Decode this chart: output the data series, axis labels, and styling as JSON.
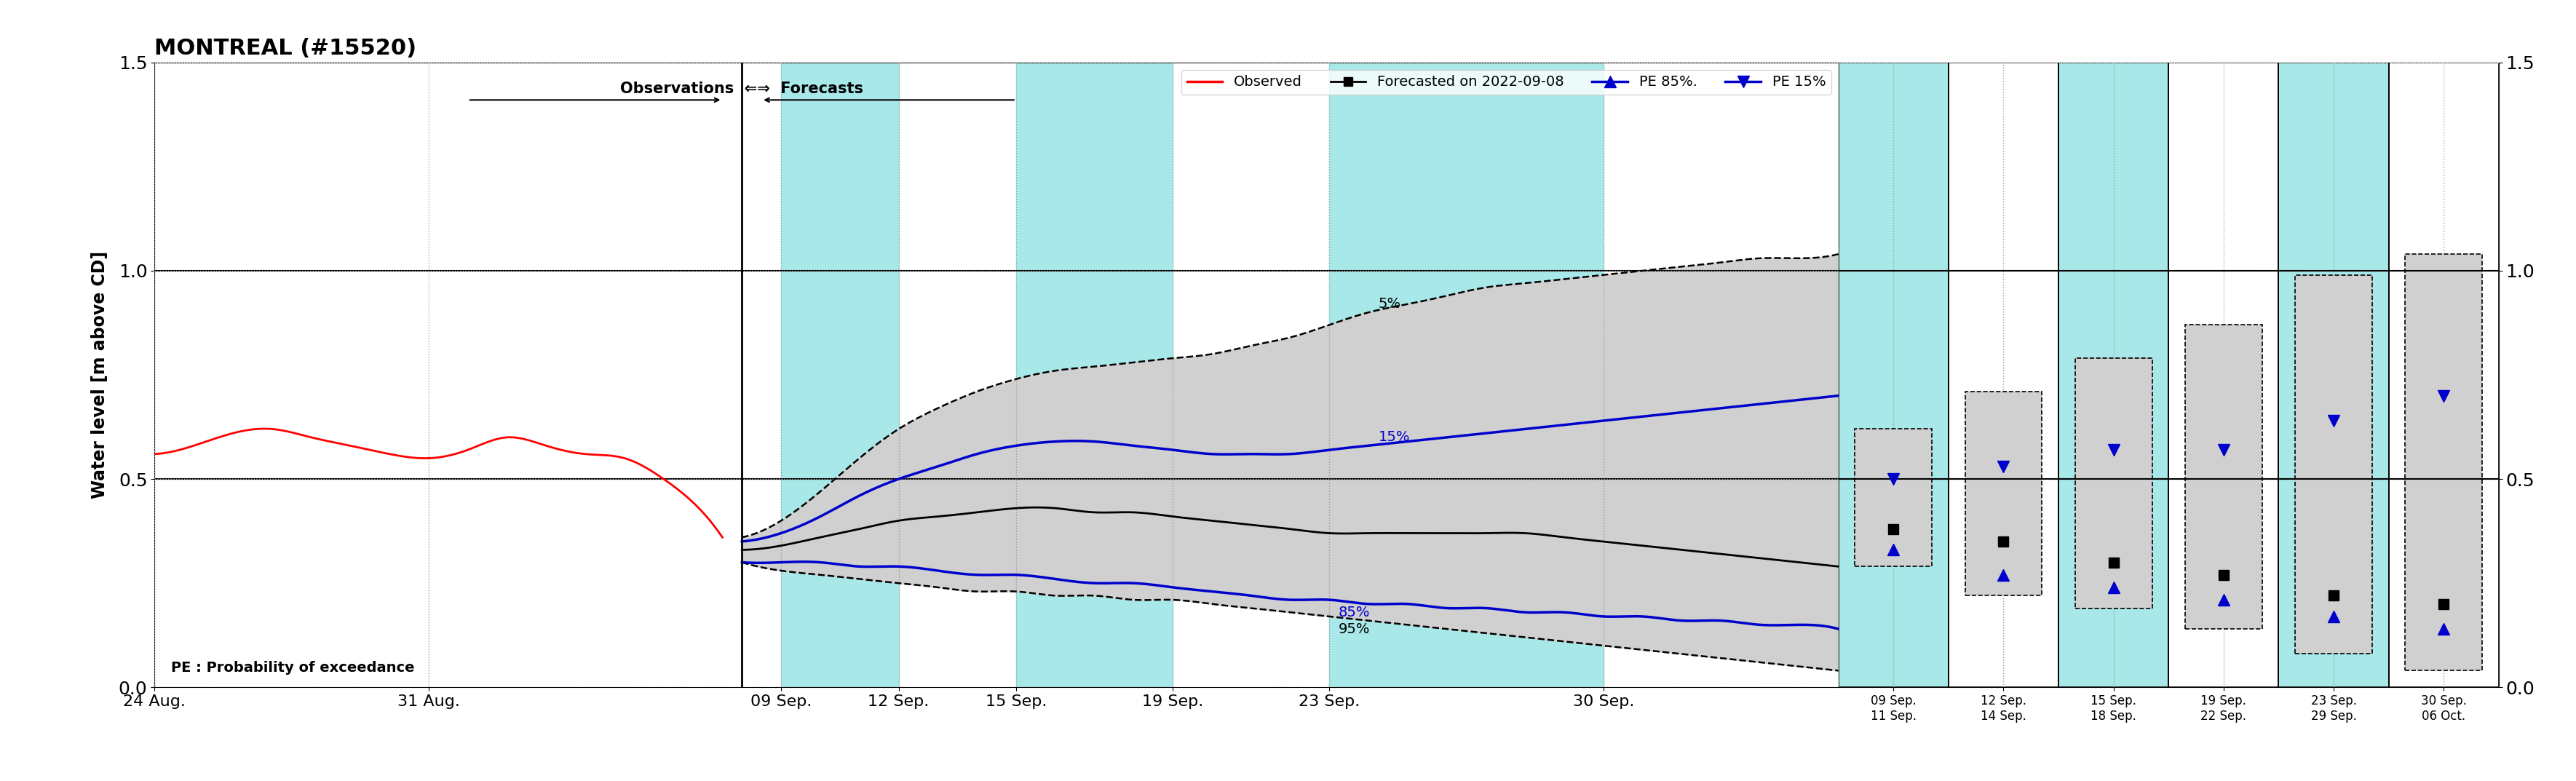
{
  "title": "MONTREAL (#15520)",
  "ylabel": "Water level [m above CD]",
  "ylim": [
    0.0,
    1.5
  ],
  "yticks": [
    0.0,
    0.5,
    1.0,
    1.5
  ],
  "cyan_color": "#a8e8e8",
  "grid_color": "#999999",
  "obs_color": "#ff0000",
  "forecast_color": "#000000",
  "pe_color": "#0000cc",
  "fill_color": "#d0d0d0",
  "legend_obs": "Observed",
  "legend_forecast": "Forecasted on 2022-09-08",
  "legend_pe85": "PE 85%.",
  "legend_pe15": "PE 15%",
  "obs_note": "PE : Probability of exceedance",
  "start_date": "2022-08-24",
  "sep8_day": 15,
  "sep9_day": 16,
  "sep12_day": 19,
  "sep15_day": 22,
  "sep19_day": 26,
  "sep23_day": 30,
  "sep30_day": 37,
  "oct6_day": 43,
  "obs_data_x": [
    0,
    1,
    2,
    3,
    4,
    5,
    6,
    7,
    8,
    9,
    10,
    11,
    12,
    13,
    14,
    14.5
  ],
  "obs_data_y": [
    0.56,
    0.58,
    0.61,
    0.62,
    0.6,
    0.58,
    0.56,
    0.55,
    0.57,
    0.6,
    0.58,
    0.56,
    0.55,
    0.5,
    0.42,
    0.36
  ],
  "med_x": [
    15,
    16,
    17,
    18,
    19,
    20,
    21,
    22,
    23,
    24,
    25,
    26,
    27,
    28,
    29,
    30,
    31,
    32,
    33,
    34,
    35,
    36,
    37,
    38,
    39,
    40,
    41,
    42,
    43
  ],
  "med_y": [
    0.33,
    0.34,
    0.36,
    0.38,
    0.4,
    0.41,
    0.42,
    0.43,
    0.43,
    0.42,
    0.42,
    0.41,
    0.4,
    0.39,
    0.38,
    0.37,
    0.37,
    0.37,
    0.37,
    0.37,
    0.37,
    0.36,
    0.35,
    0.34,
    0.33,
    0.32,
    0.31,
    0.3,
    0.29
  ],
  "pe15_x": [
    15,
    16,
    17,
    18,
    19,
    20,
    21,
    22,
    23,
    24,
    25,
    26,
    27,
    28,
    29,
    30,
    31,
    32,
    33,
    34,
    35,
    36,
    37,
    38,
    39,
    40,
    41,
    42,
    43
  ],
  "pe15_y": [
    0.35,
    0.37,
    0.41,
    0.46,
    0.5,
    0.53,
    0.56,
    0.58,
    0.59,
    0.59,
    0.58,
    0.57,
    0.56,
    0.56,
    0.56,
    0.57,
    0.58,
    0.59,
    0.6,
    0.61,
    0.62,
    0.63,
    0.64,
    0.65,
    0.66,
    0.67,
    0.68,
    0.69,
    0.7
  ],
  "pe85_x": [
    15,
    16,
    17,
    18,
    19,
    20,
    21,
    22,
    23,
    24,
    25,
    26,
    27,
    28,
    29,
    30,
    31,
    32,
    33,
    34,
    35,
    36,
    37,
    38,
    39,
    40,
    41,
    42,
    43
  ],
  "pe85_y": [
    0.3,
    0.3,
    0.3,
    0.29,
    0.29,
    0.28,
    0.27,
    0.27,
    0.26,
    0.25,
    0.25,
    0.24,
    0.23,
    0.22,
    0.21,
    0.21,
    0.2,
    0.2,
    0.19,
    0.19,
    0.18,
    0.18,
    0.17,
    0.17,
    0.16,
    0.16,
    0.15,
    0.15,
    0.14
  ],
  "p5_x": [
    15,
    16,
    17,
    18,
    19,
    20,
    21,
    22,
    23,
    24,
    25,
    26,
    27,
    28,
    29,
    30,
    31,
    32,
    33,
    34,
    35,
    36,
    37,
    38,
    39,
    40,
    41,
    42,
    43
  ],
  "p5_y": [
    0.36,
    0.4,
    0.47,
    0.55,
    0.62,
    0.67,
    0.71,
    0.74,
    0.76,
    0.77,
    0.78,
    0.79,
    0.8,
    0.82,
    0.84,
    0.87,
    0.9,
    0.92,
    0.94,
    0.96,
    0.97,
    0.98,
    0.99,
    1.0,
    1.01,
    1.02,
    1.03,
    1.03,
    1.04
  ],
  "p95_x": [
    15,
    16,
    17,
    18,
    19,
    20,
    21,
    22,
    23,
    24,
    25,
    26,
    27,
    28,
    29,
    30,
    31,
    32,
    33,
    34,
    35,
    36,
    37,
    38,
    39,
    40,
    41,
    42,
    43
  ],
  "p95_y": [
    0.3,
    0.28,
    0.27,
    0.26,
    0.25,
    0.24,
    0.23,
    0.23,
    0.22,
    0.22,
    0.21,
    0.21,
    0.2,
    0.19,
    0.18,
    0.17,
    0.16,
    0.15,
    0.14,
    0.13,
    0.12,
    0.11,
    0.1,
    0.09,
    0.08,
    0.07,
    0.06,
    0.05,
    0.04
  ],
  "right_cols": [
    {
      "label_top": "09 Sep.",
      "label_bot": "11 Sep.",
      "cyan": true,
      "pe85": 0.33,
      "med": 0.38,
      "pe15": 0.5,
      "p5": 0.62,
      "p95": 0.29
    },
    {
      "label_top": "12 Sep.",
      "label_bot": "14 Sep.",
      "cyan": false,
      "pe85": 0.27,
      "med": 0.35,
      "pe15": 0.53,
      "p5": 0.71,
      "p95": 0.22
    },
    {
      "label_top": "15 Sep.",
      "label_bot": "18 Sep.",
      "cyan": true,
      "pe85": 0.24,
      "med": 0.3,
      "pe15": 0.57,
      "p5": 0.79,
      "p95": 0.19
    },
    {
      "label_top": "19 Sep.",
      "label_bot": "22 Sep.",
      "cyan": false,
      "pe85": 0.21,
      "med": 0.27,
      "pe15": 0.57,
      "p5": 0.87,
      "p95": 0.14
    },
    {
      "label_top": "23 Sep.",
      "label_bot": "29 Sep.",
      "cyan": true,
      "pe85": 0.17,
      "med": 0.22,
      "pe15": 0.64,
      "p5": 0.99,
      "p95": 0.08
    },
    {
      "label_top": "30 Sep.",
      "label_bot": "06 Oct.",
      "cyan": false,
      "pe85": 0.14,
      "med": 0.2,
      "pe15": 0.7,
      "p5": 1.04,
      "p95": 0.04
    }
  ]
}
